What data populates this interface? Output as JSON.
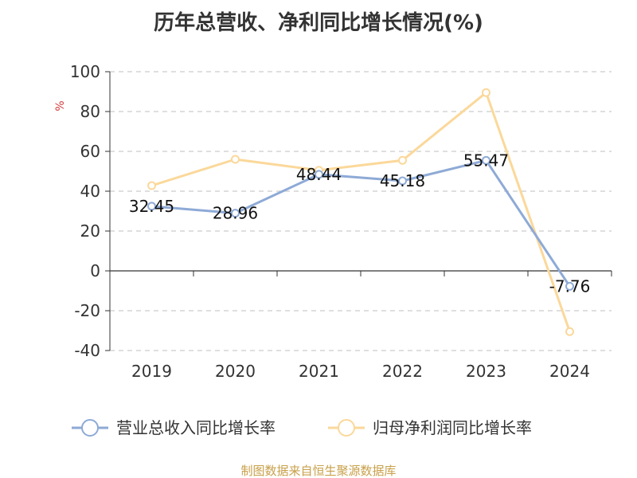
{
  "chart_data": {
    "type": "line",
    "title": "历年总营收、净利同比增长情况(%)",
    "ylabel": "%",
    "categories": [
      "2019",
      "2020",
      "2021",
      "2022",
      "2023",
      "2024"
    ],
    "ylim": [
      -40,
      100
    ],
    "yticks": [
      "100",
      "80",
      "60",
      "40",
      "20",
      "0",
      "-20",
      "-40"
    ],
    "ytick_values": [
      100,
      80,
      60,
      40,
      20,
      0,
      -20,
      -40
    ],
    "grid": true,
    "legend_position": "bottom",
    "series": [
      {
        "name": "营业总收入同比增长率",
        "color": "#8eaad6",
        "values": [
          32.45,
          28.96,
          48.44,
          45.18,
          55.47,
          -7.76
        ],
        "labels": [
          "32.45",
          "28.96",
          "48.44",
          "45.18",
          "55.47",
          "-7.76"
        ]
      },
      {
        "name": "归母净利润同比增长率",
        "color": "#fbd89a",
        "values": [
          42.8,
          56.0,
          50.5,
          55.5,
          89.5,
          -30.5
        ]
      }
    ]
  },
  "source": "制图数据来自恒生聚源数据库"
}
